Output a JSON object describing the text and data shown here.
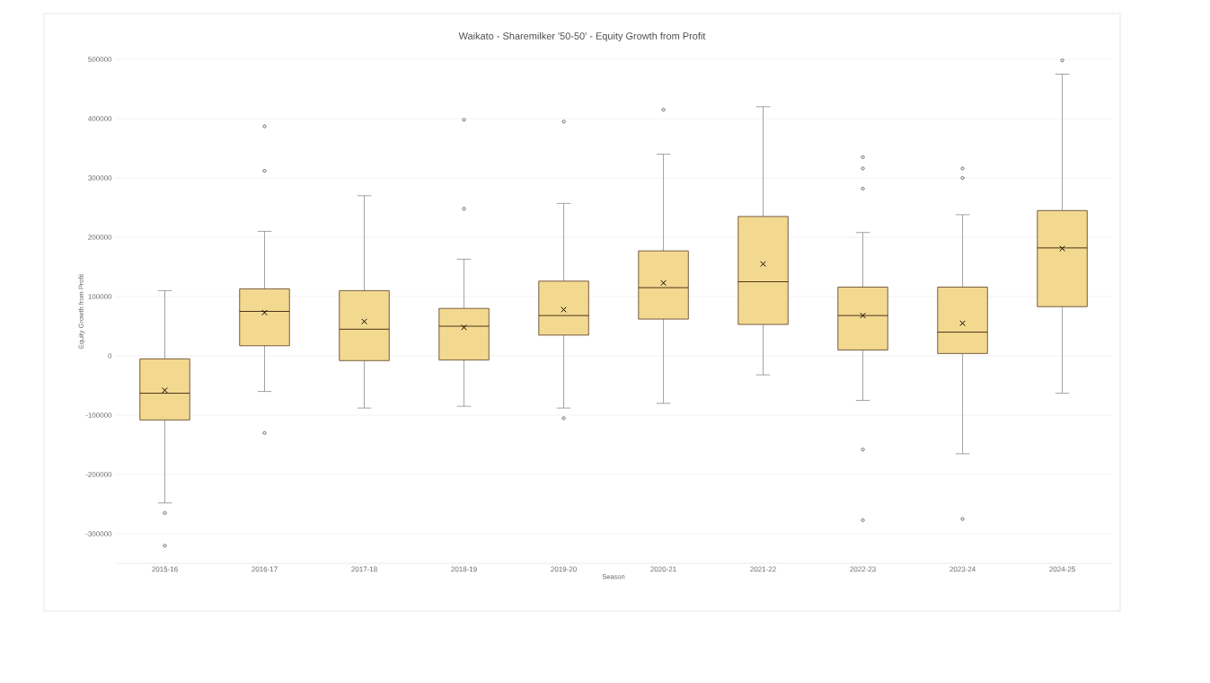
{
  "chart_data": {
    "type": "box",
    "title": "Waikato - Sharemilker '50-50' - Equity Growth from Profit",
    "xlabel": "Season",
    "ylabel": "Equity Growth from Profit",
    "categories": [
      "2015-16",
      "2016-17",
      "2017-18",
      "2018-19",
      "2019-20",
      "2020-21",
      "2021-22",
      "2022-23",
      "2023-24",
      "2024-25"
    ],
    "color": "#f3d990",
    "boxes": [
      {
        "low": -248000,
        "q1": -108000,
        "median": -63000,
        "q3": -5000,
        "high": 110000,
        "mean": -58000,
        "outliers": [
          -265000,
          -320000
        ]
      },
      {
        "low": -60000,
        "q1": 17000,
        "median": 75000,
        "q3": 113000,
        "high": 210000,
        "mean": 73000,
        "outliers": [
          387000,
          312000,
          -130000
        ]
      },
      {
        "low": -88000,
        "q1": -8000,
        "median": 45000,
        "q3": 110000,
        "high": 270000,
        "mean": 58000
      },
      {
        "low": -85000,
        "q1": -7000,
        "median": 50000,
        "q3": 80000,
        "high": 163000,
        "mean": 48000,
        "outliers": [
          398000,
          248000
        ]
      },
      {
        "low": -88000,
        "q1": 35000,
        "median": 68000,
        "q3": 126000,
        "high": 257000,
        "mean": 78000,
        "outliers": [
          395000,
          -105000
        ]
      },
      {
        "low": -80000,
        "q1": 62000,
        "median": 115000,
        "q3": 177000,
        "high": 340000,
        "mean": 123000,
        "outliers": [
          415000
        ]
      },
      {
        "low": -32000,
        "q1": 53000,
        "median": 125000,
        "q3": 235000,
        "high": 420000,
        "mean": 155000
      },
      {
        "low": -75000,
        "q1": 10000,
        "median": 68000,
        "q3": 116000,
        "high": 208000,
        "mean": 68000,
        "outliers": [
          335000,
          316000,
          282000,
          -158000,
          -277000
        ]
      },
      {
        "low": -165000,
        "q1": 4000,
        "median": 40000,
        "q3": 116000,
        "high": 238000,
        "mean": 55000,
        "outliers": [
          316000,
          300000,
          -275000
        ]
      },
      {
        "low": -63000,
        "q1": 83000,
        "median": 182000,
        "q3": 245000,
        "high": 475000,
        "mean": 181000,
        "outliers": [
          498000
        ]
      }
    ],
    "ylim": [
      -350000,
      500000
    ],
    "yticks": [
      -300000,
      -200000,
      -100000,
      0,
      100000,
      200000,
      300000,
      400000,
      500000
    ],
    "grid": "y"
  }
}
